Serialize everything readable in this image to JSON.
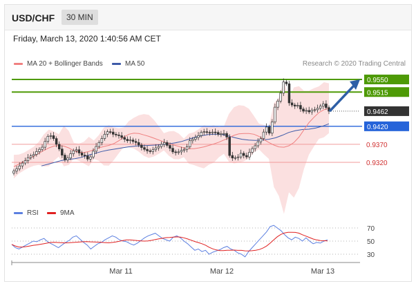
{
  "header": {
    "pair": "USD/CHF",
    "timeframe": "30 MIN"
  },
  "date_line": "Friday, March 13, 2020 1:40:56 AM CET",
  "legend": {
    "ma20_label": "MA 20 + Bollinger Bands",
    "ma50_label": "MA 50",
    "credit": "Research © 2020 Trading Central"
  },
  "sub_legend": {
    "rsi_label": "RSI",
    "ma9_label": "9MA"
  },
  "colors": {
    "ma20": "#f08080",
    "ma50": "#3d5aa8",
    "band_fill": "#fad6d6",
    "green_level": "#4e9a06",
    "blue_level": "#2563d9",
    "red_level": "#f19a9a",
    "current_price_box": "#333333",
    "arrow": "#2e5fa6",
    "rsi": "#5b7fe0",
    "ma9": "#e02020"
  },
  "chart_data": {
    "type": "line",
    "instrument": "USD/CHF",
    "price_levels": [
      {
        "value": 0.955,
        "label": "0.9550",
        "kind": "resistance"
      },
      {
        "value": 0.9515,
        "label": "0.9515",
        "kind": "resistance"
      },
      {
        "value": 0.9462,
        "label": "0.9462",
        "kind": "current"
      },
      {
        "value": 0.942,
        "label": "0.9420",
        "kind": "pivot"
      },
      {
        "value": 0.937,
        "label": "0.9370",
        "kind": "support"
      },
      {
        "value": 0.932,
        "label": "0.9320",
        "kind": "support"
      }
    ],
    "x_ticks": [
      "Mar 11",
      "Mar 12",
      "Mar 13"
    ],
    "rsi_ticks": [
      "70",
      "50",
      "30"
    ],
    "close_series": [
      0.9296,
      0.9302,
      0.931,
      0.9318,
      0.9325,
      0.9333,
      0.9338,
      0.9342,
      0.935,
      0.9356,
      0.9362,
      0.9378,
      0.9392,
      0.9394,
      0.9386,
      0.937,
      0.9357,
      0.934,
      0.9327,
      0.9332,
      0.9344,
      0.9352,
      0.9355,
      0.9346,
      0.934,
      0.9338,
      0.9329,
      0.9335,
      0.9351,
      0.9364,
      0.9375,
      0.9386,
      0.9398,
      0.9405,
      0.9404,
      0.9398,
      0.9396,
      0.9394,
      0.9389,
      0.9384,
      0.938,
      0.9382,
      0.9378,
      0.9375,
      0.9368,
      0.9361,
      0.9356,
      0.9352,
      0.935,
      0.9355,
      0.936,
      0.9364,
      0.937,
      0.9375,
      0.9367,
      0.9359,
      0.9349,
      0.9347,
      0.9349,
      0.9353,
      0.9356,
      0.9363,
      0.938,
      0.9384,
      0.9389,
      0.9394,
      0.9403,
      0.9405,
      0.9403,
      0.9402,
      0.9404,
      0.9403,
      0.9398,
      0.9399,
      0.94,
      0.939,
      0.9339,
      0.9332,
      0.9333,
      0.9335,
      0.9345,
      0.9339,
      0.9335,
      0.9348,
      0.9358,
      0.9366,
      0.9377,
      0.9386,
      0.9404,
      0.9418,
      0.9401,
      0.9432,
      0.9473,
      0.949,
      0.9512,
      0.9543,
      0.9538,
      0.9485,
      0.9479,
      0.9476,
      0.9478,
      0.9468,
      0.9462,
      0.9464,
      0.946,
      0.9465,
      0.9466,
      0.947,
      0.9476,
      0.9482,
      0.9472,
      0.9462
    ],
    "ma50_series": [
      0.931,
      0.9315,
      0.932,
      0.9325,
      0.9328,
      0.933,
      0.9334,
      0.934,
      0.9345,
      0.935,
      0.9354,
      0.9357,
      0.936,
      0.9363,
      0.9365,
      0.9366,
      0.9367,
      0.9368,
      0.9369,
      0.9371,
      0.9374,
      0.9378,
      0.9384,
      0.939,
      0.9394,
      0.9397,
      0.9398,
      0.9397,
      0.9393,
      0.9388,
      0.9384,
      0.9382,
      0.9381,
      0.9382,
      0.9384,
      0.9388,
      0.9395,
      0.9403,
      0.9408,
      0.9411,
      0.9412,
      0.9415,
      0.942,
      0.9427
    ],
    "ma20_series": [
      0.9308,
      0.9315,
      0.9322,
      0.933,
      0.9337,
      0.9345,
      0.9353,
      0.936,
      0.9365,
      0.9367,
      0.9365,
      0.936,
      0.9352,
      0.9348,
      0.9347,
      0.935,
      0.9355,
      0.936,
      0.9364,
      0.9367,
      0.9372,
      0.938,
      0.939,
      0.9398,
      0.9401,
      0.94,
      0.9396,
      0.9392,
      0.9387,
      0.9382,
      0.9377,
      0.9372,
      0.9368,
      0.9364,
      0.936,
      0.9358,
      0.9358,
      0.936,
      0.9363,
      0.9367,
      0.9371,
      0.9376,
      0.9382,
      0.9388,
      0.9395,
      0.9399,
      0.94,
      0.94,
      0.9398,
      0.9392,
      0.9383,
      0.9375,
      0.9368,
      0.9363,
      0.9362,
      0.9366,
      0.9375,
      0.939,
      0.941,
      0.943,
      0.9445,
      0.9458,
      0.9466,
      0.947
    ],
    "rsi_series": [
      45,
      40,
      38,
      41,
      44,
      47,
      50,
      49,
      52,
      54,
      49,
      46,
      43,
      40,
      44,
      48,
      51,
      56,
      58,
      53,
      48,
      44,
      38,
      42,
      46,
      48,
      52,
      55,
      58,
      56,
      52,
      50,
      49,
      46,
      44,
      47,
      51,
      55,
      58,
      60,
      62,
      58,
      54,
      52,
      50,
      56,
      58,
      55,
      50,
      46,
      41,
      36,
      38,
      34,
      36,
      30,
      33,
      35,
      37,
      40,
      42,
      38,
      36,
      32,
      30,
      26,
      34,
      40,
      46,
      52,
      58,
      64,
      72,
      74,
      70,
      66,
      60,
      55,
      52,
      56,
      54,
      50,
      55,
      50,
      46,
      48,
      47,
      50,
      52
    ]
  }
}
